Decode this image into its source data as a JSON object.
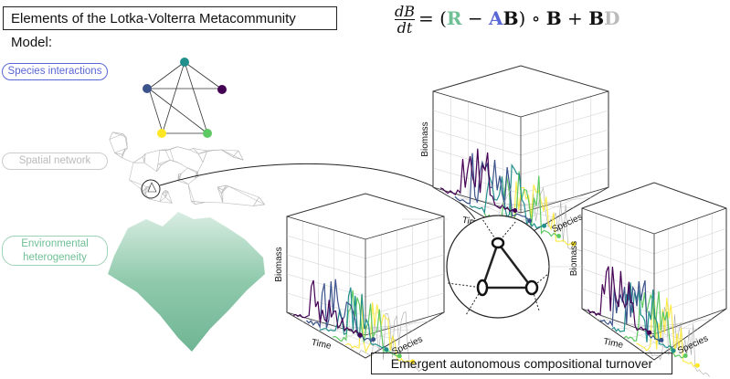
{
  "title": "Elements of the Lotka-Volterra Metacommunity Model:",
  "equation": {
    "numerator": "dB",
    "denominator": "dt",
    "parts": [
      "= (",
      "R",
      " − ",
      "A",
      "B",
      ") ∘ ",
      "B",
      " + ",
      "B",
      "D"
    ]
  },
  "labels": {
    "species_interactions": "Species interactions",
    "spatial_network": "Spatial network",
    "environmental_heterogeneity": "Environmental heterogeneity"
  },
  "plot_axes": {
    "y": "Biomass",
    "x": "Time",
    "z": "Species"
  },
  "caption": "Emergent autonomous compositional turnover",
  "colors": {
    "R": "#6fbf95",
    "A": "#5866d6",
    "D": "#bbbbbb",
    "species": [
      "#440154",
      "#3b528b",
      "#21908d",
      "#5ec962",
      "#fde725"
    ]
  }
}
